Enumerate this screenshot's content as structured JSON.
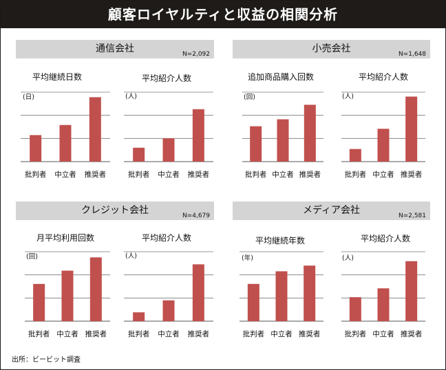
{
  "title": "顧客ロイヤルティと収益の相関分析",
  "source": "出所：ビービット調査",
  "colors": {
    "bar": "#c0504d",
    "grid": "#777777",
    "header_bg": "#d4d4d4",
    "title_bg": "#1e1b18"
  },
  "sections": [
    {
      "title": "通信会社",
      "n": "N=2,092"
    },
    {
      "title": "小売会社",
      "n": "N=1,648"
    },
    {
      "title": "クレジット会社",
      "n": "N=4,679"
    },
    {
      "title": "メディア会社",
      "n": "N=2,581"
    }
  ],
  "chart_data": [
    {
      "type": "bar",
      "title": "平均継続日数",
      "unit": "(日)",
      "categories": [
        "批判者",
        "中立者",
        "推奨者"
      ],
      "values": [
        42,
        58,
        102
      ],
      "ylim": [
        0,
        110
      ]
    },
    {
      "type": "bar",
      "title": "平均紹介人数",
      "unit": "(人)",
      "categories": [
        "批判者",
        "中立者",
        "推奨者"
      ],
      "values": [
        22,
        37,
        83
      ],
      "ylim": [
        0,
        110
      ]
    },
    {
      "type": "bar",
      "title": "追加商品購入回数",
      "unit": "(回)",
      "categories": [
        "批判者",
        "中立者",
        "推奨者"
      ],
      "values": [
        56,
        67,
        90
      ],
      "ylim": [
        0,
        110
      ]
    },
    {
      "type": "bar",
      "title": "平均紹介人数",
      "unit": "(人)",
      "categories": [
        "批判者",
        "中立者",
        "推奨者"
      ],
      "values": [
        20,
        52,
        103
      ],
      "ylim": [
        0,
        110
      ]
    },
    {
      "type": "bar",
      "title": "月平均利用回数",
      "unit": "(回)",
      "categories": [
        "批判者",
        "中立者",
        "推奨者"
      ],
      "values": [
        59,
        80,
        101
      ],
      "ylim": [
        0,
        110
      ]
    },
    {
      "type": "bar",
      "title": "平均紹介人数",
      "unit": "(人)",
      "categories": [
        "批判者",
        "中立者",
        "推奨者"
      ],
      "values": [
        14,
        33,
        90
      ],
      "ylim": [
        0,
        110
      ]
    },
    {
      "type": "bar",
      "title": "平均継続年数",
      "unit": "(年)",
      "categories": [
        "批判者",
        "中立者",
        "推奨者"
      ],
      "values": [
        59,
        79,
        88
      ],
      "ylim": [
        0,
        110
      ]
    },
    {
      "type": "bar",
      "title": "平均紹介人数",
      "unit": "(人)",
      "categories": [
        "批判者",
        "中立者",
        "推奨者"
      ],
      "values": [
        38,
        52,
        95
      ],
      "ylim": [
        0,
        110
      ]
    }
  ]
}
